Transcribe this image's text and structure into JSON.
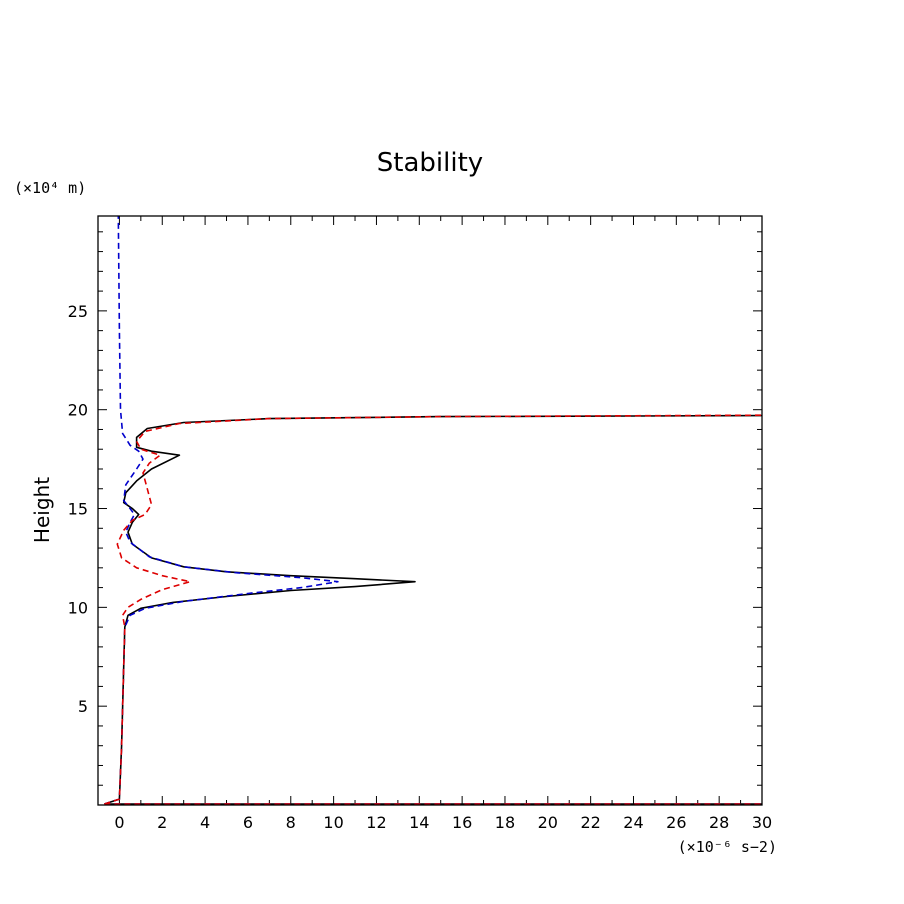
{
  "chart_data": {
    "type": "line",
    "title": "Stability",
    "xlabel": "",
    "ylabel": "Height",
    "x_unit": "(×10⁻⁶ s−2)",
    "y_unit": "(×10⁴ m)",
    "xlim": [
      -1,
      30
    ],
    "ylim": [
      0,
      29.8
    ],
    "xticks": [
      0,
      2,
      4,
      6,
      8,
      10,
      12,
      14,
      16,
      18,
      20,
      22,
      24,
      26,
      28,
      30
    ],
    "xtick_labels": [
      "0",
      "2",
      "4",
      "6",
      "8",
      "10",
      "12",
      "14",
      "16",
      "18",
      "20",
      "22",
      "24",
      "26",
      "28",
      "30"
    ],
    "yticks": [
      5,
      10,
      15,
      20,
      25
    ],
    "ytick_labels": [
      "5",
      "10",
      "15",
      "20",
      "25"
    ],
    "grid": false,
    "series": [
      {
        "name": "black-solid",
        "color": "#000000",
        "dash": "solid",
        "points": [
          [
            -0.7,
            0.05
          ],
          [
            0,
            0.3
          ],
          [
            0.1,
            3
          ],
          [
            0.2,
            7
          ],
          [
            0.25,
            9
          ],
          [
            0.4,
            9.6
          ],
          [
            1,
            9.95
          ],
          [
            2.5,
            10.25
          ],
          [
            5,
            10.55
          ],
          [
            8,
            10.85
          ],
          [
            11,
            11.05
          ],
          [
            13.8,
            11.3
          ],
          [
            11,
            11.45
          ],
          [
            8,
            11.6
          ],
          [
            5,
            11.8
          ],
          [
            3,
            12.05
          ],
          [
            1.5,
            12.5
          ],
          [
            0.6,
            13.2
          ],
          [
            0.4,
            13.8
          ],
          [
            0.6,
            14.3
          ],
          [
            0.9,
            14.7
          ],
          [
            0.6,
            15
          ],
          [
            0.2,
            15.3
          ],
          [
            0.3,
            15.8
          ],
          [
            0.8,
            16.4
          ],
          [
            1.5,
            17
          ],
          [
            2.8,
            17.7
          ],
          [
            1.5,
            17.9
          ],
          [
            0.8,
            18.1
          ],
          [
            0.8,
            18.6
          ],
          [
            1.3,
            19.05
          ],
          [
            3,
            19.35
          ],
          [
            7,
            19.55
          ],
          [
            15,
            19.65
          ],
          [
            30,
            19.7
          ]
        ]
      },
      {
        "name": "blue-dashed",
        "color": "#0000cc",
        "dash": "dashed",
        "points": [
          [
            -0.7,
            0.05
          ],
          [
            0,
            0.3
          ],
          [
            0.1,
            3
          ],
          [
            0.2,
            7
          ],
          [
            0.25,
            9
          ],
          [
            0.5,
            9.6
          ],
          [
            1.2,
            9.95
          ],
          [
            3,
            10.3
          ],
          [
            6,
            10.7
          ],
          [
            8.5,
            11.0
          ],
          [
            10.2,
            11.3
          ],
          [
            8.5,
            11.5
          ],
          [
            5.5,
            11.75
          ],
          [
            3,
            12.05
          ],
          [
            1.4,
            12.55
          ],
          [
            0.5,
            13.3
          ],
          [
            0.3,
            13.8
          ],
          [
            0.5,
            14.3
          ],
          [
            0.7,
            14.7
          ],
          [
            0.5,
            15
          ],
          [
            0.2,
            15.4
          ],
          [
            0.3,
            16.2
          ],
          [
            0.8,
            17.0
          ],
          [
            1.1,
            17.5
          ],
          [
            0.9,
            17.9
          ],
          [
            0.5,
            18.2
          ],
          [
            0.15,
            18.8
          ],
          [
            0.05,
            20
          ],
          [
            0,
            24
          ],
          [
            -0.05,
            29.8
          ]
        ]
      },
      {
        "name": "red-dashed",
        "color": "#dd0000",
        "dash": "dashed",
        "points": [
          [
            -0.7,
            0.05
          ],
          [
            0,
            0.3
          ],
          [
            0.1,
            3
          ],
          [
            0.2,
            7
          ],
          [
            0.25,
            9
          ],
          [
            0.15,
            9.6
          ],
          [
            0.4,
            10.0
          ],
          [
            1,
            10.4
          ],
          [
            2,
            10.9
          ],
          [
            3.3,
            11.3
          ],
          [
            2,
            11.6
          ],
          [
            0.8,
            12.0
          ],
          [
            0.1,
            12.5
          ],
          [
            -0.1,
            13.2
          ],
          [
            0.2,
            13.9
          ],
          [
            0.6,
            14.4
          ],
          [
            1.2,
            14.7
          ],
          [
            1.5,
            15.2
          ],
          [
            1.3,
            16
          ],
          [
            1.1,
            16.8
          ],
          [
            1.4,
            17.3
          ],
          [
            1.9,
            17.7
          ],
          [
            1.0,
            18.0
          ],
          [
            0.8,
            18.4
          ],
          [
            1.2,
            18.9
          ],
          [
            2.8,
            19.3
          ],
          [
            7,
            19.55
          ],
          [
            15,
            19.65
          ],
          [
            30,
            19.72
          ]
        ]
      }
    ],
    "baseline": {
      "y": 0.05,
      "x_start": -0.7,
      "x_end": 30
    }
  }
}
